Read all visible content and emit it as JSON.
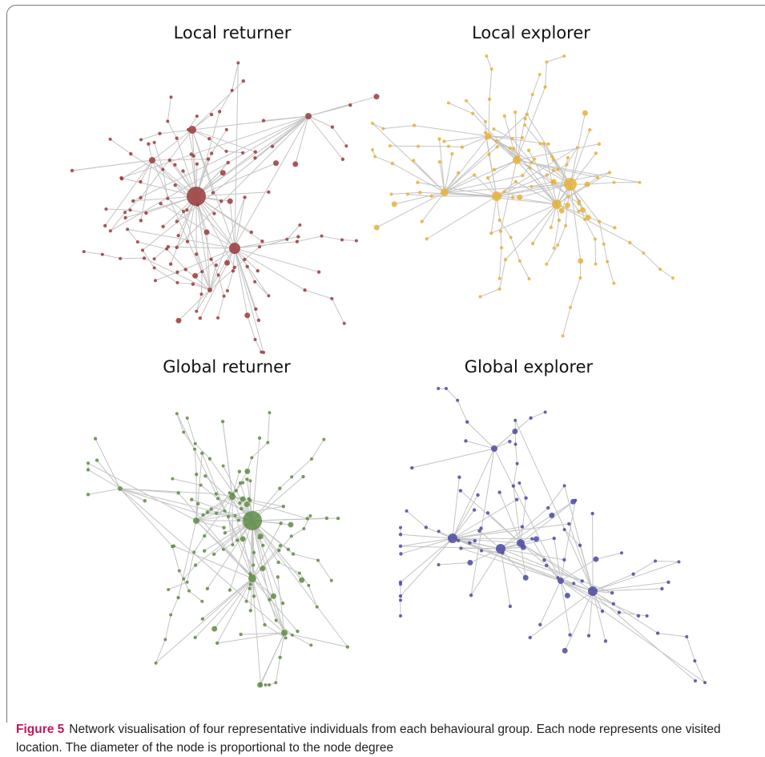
{
  "panels": [
    {
      "title": "Local returner"
    },
    {
      "title": "Local explorer"
    },
    {
      "title": "Global returner"
    },
    {
      "title": "Global explorer"
    }
  ],
  "caption": {
    "label": "Figure 5",
    "text": "Network visualisation of four representative individuals from each behavioural group. Each node represents one visited location. The diameter of the node is proportional to the node degree"
  }
}
